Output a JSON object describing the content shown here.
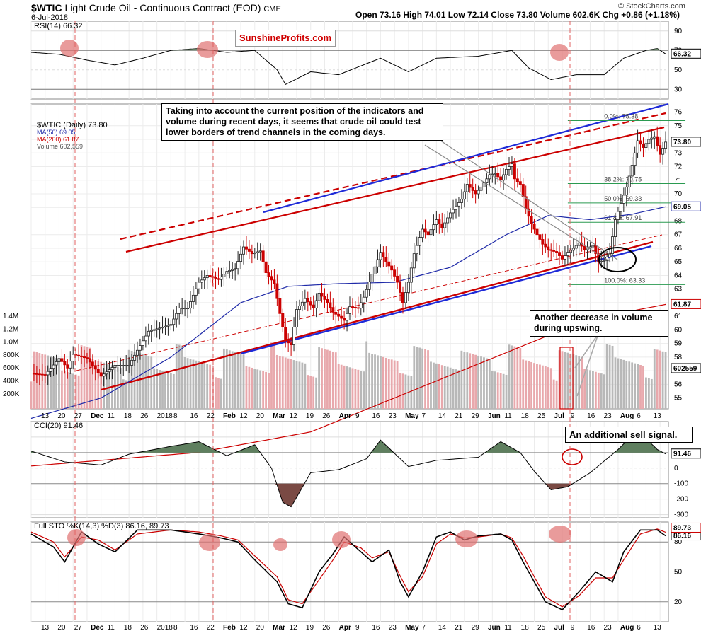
{
  "header": {
    "symbol": "$WTIC",
    "name": "Light Crude Oil - Continuous Contract (EOD)",
    "exchange": "CME",
    "date": "6-Jul-2018",
    "ohlc_text": "Open 73.16  High 74.01  Low 72.14  Close 73.80  Volume 602.6K  Chg +0.86 (+1.18%)",
    "source": "© StockCharts.com"
  },
  "brand": "SunshineProfits.com",
  "annotations": {
    "main": "Taking into account the current position of the indicators and volume during recent days, it seems that crude oil could test lower borders of trend channels in the coming days.",
    "volume": "Another decrease in volume during upswing.",
    "cci": "An additional sell signal."
  },
  "colors": {
    "up": "#222222",
    "down": "#cc0000",
    "ma50": "#1f2aa8",
    "ma200": "#cc0000",
    "indicator_fill": "#5f7f5f",
    "fill_neg": "#7a4a44",
    "highlight": "#e07070",
    "channel_red": "#cc0000",
    "channel_blue": "#1e2ad8"
  },
  "panels": {
    "rsi": {
      "label": "RSI(14) 66.32",
      "last": "66.32",
      "ticks": [
        "90",
        "70",
        "50",
        "30"
      ]
    },
    "price": {
      "legend": [
        {
          "text": "$WTIC (Daily) 73.80",
          "color": "#000000"
        },
        {
          "text": "MA(50) 69.05",
          "color": "#1f2aa8"
        },
        {
          "text": "MA(200) 61.87",
          "color": "#cc0000"
        },
        {
          "text": "Volume 602,559",
          "color": "#555555"
        }
      ],
      "ticks": [
        "76",
        "75",
        "74",
        "73",
        "72",
        "71",
        "70",
        "69",
        "68",
        "67",
        "66",
        "65",
        "64",
        "63",
        "62",
        "61",
        "60",
        "59",
        "58",
        "57",
        "56",
        "55"
      ],
      "last": "73.80",
      "ma50_last": "69.05",
      "ma200_last": "61.87",
      "volume_last": "602559",
      "volume_ticks": [
        "1.4M",
        "1.2M",
        "1.0M",
        "800K",
        "600K",
        "400K",
        "200K"
      ],
      "fib_levels": [
        {
          "label": "0.0%: 75.38",
          "value": 75.38
        },
        {
          "label": "38.2%: 70.75",
          "value": 70.75
        },
        {
          "label": "50.0%: 69.33",
          "value": 69.33
        },
        {
          "label": "61.8%: 67.91",
          "value": 67.91
        },
        {
          "label": "100.0%: 63.33",
          "value": 63.33
        }
      ]
    },
    "cci": {
      "label": "CCI(20) 91.46",
      "last": "91.46",
      "ticks": [
        "200",
        "100",
        "0",
        "-100",
        "-200",
        "-300"
      ]
    },
    "sto": {
      "label": "Full STO %K(14,3) %D(3) 86.16, 89.73",
      "k_last": "86.16",
      "d_last": "89.73",
      "ticks": [
        "80",
        "50",
        "20"
      ]
    }
  },
  "x_labels": [
    "13",
    "20",
    "27",
    "Dec",
    "11",
    "18",
    "26",
    "2018",
    "8",
    "16",
    "22",
    "Feb",
    "12",
    "20",
    "Mar",
    "12",
    "19",
    "26",
    "Apr",
    "9",
    "16",
    "23",
    "May",
    "7",
    "14",
    "21",
    "29",
    "Jun",
    "11",
    "18",
    "25",
    "Jul",
    "9",
    "16",
    "23",
    "Aug",
    "6",
    "13"
  ],
  "chart_data": {
    "type": "line",
    "title": "$WTIC Light Crude Oil - Continuous Contract (EOD)",
    "x_start": "2017-11-09",
    "x_end": "2018-07-06",
    "series": [
      {
        "name": "$WTIC (Daily)",
        "points": [
          [
            0,
            56.8
          ],
          [
            5,
            56.7
          ],
          [
            10,
            57.9
          ],
          [
            13,
            57.2
          ],
          [
            15,
            58.2
          ],
          [
            20,
            57.9
          ],
          [
            25,
            56.6
          ],
          [
            30,
            57.4
          ],
          [
            35,
            57.4
          ],
          [
            38,
            58.5
          ],
          [
            42,
            59.9
          ],
          [
            47,
            60.2
          ],
          [
            50,
            60.4
          ],
          [
            53,
            61.6
          ],
          [
            56,
            61.6
          ],
          [
            60,
            63.5
          ],
          [
            63,
            64.0
          ],
          [
            67,
            63.7
          ],
          [
            70,
            64.3
          ],
          [
            73,
            64.5
          ],
          [
            76,
            66.1
          ],
          [
            79,
            65.6
          ],
          [
            82,
            65.8
          ],
          [
            84,
            64.2
          ],
          [
            87,
            63.4
          ],
          [
            89,
            61.2
          ],
          [
            91,
            59.2
          ],
          [
            93,
            58.9
          ],
          [
            95,
            61.5
          ],
          [
            98,
            62.3
          ],
          [
            101,
            61.6
          ],
          [
            103,
            62.7
          ],
          [
            106,
            62.0
          ],
          [
            108,
            61.3
          ],
          [
            110,
            61.0
          ],
          [
            112,
            60.7
          ],
          [
            114,
            61.7
          ],
          [
            117,
            61.6
          ],
          [
            119,
            62.4
          ],
          [
            122,
            64.1
          ],
          [
            125,
            65.7
          ],
          [
            127,
            65.0
          ],
          [
            129,
            64.4
          ],
          [
            131,
            63.5
          ],
          [
            133,
            62.0
          ],
          [
            135,
            63.5
          ],
          [
            137,
            65.6
          ],
          [
            140,
            67.4
          ],
          [
            142,
            67.0
          ],
          [
            145,
            68.1
          ],
          [
            147,
            67.5
          ],
          [
            150,
            68.6
          ],
          [
            152,
            69.1
          ],
          [
            154,
            69.6
          ],
          [
            156,
            70.7
          ],
          [
            159,
            70.0
          ],
          [
            161,
            70.5
          ],
          [
            164,
            71.4
          ],
          [
            166,
            71.5
          ],
          [
            168,
            71.0
          ],
          [
            170,
            71.8
          ],
          [
            172,
            72.2
          ],
          [
            173,
            71.1
          ],
          [
            175,
            70.7
          ],
          [
            177,
            68.9
          ],
          [
            179,
            67.8
          ],
          [
            181,
            67.0
          ],
          [
            183,
            66.3
          ],
          [
            185,
            65.9
          ],
          [
            188,
            65.7
          ],
          [
            190,
            65.2
          ],
          [
            192,
            65.7
          ],
          [
            194,
            66.0
          ],
          [
            196,
            66.4
          ],
          [
            198,
            65.9
          ],
          [
            201,
            66.2
          ],
          [
            203,
            65.0
          ],
          [
            205,
            65.1
          ],
          [
            207,
            65.6
          ],
          [
            209,
            68.1
          ],
          [
            211,
            69.3
          ],
          [
            213,
            70.5
          ],
          [
            215,
            72.1
          ],
          [
            217,
            73.9
          ],
          [
            219,
            73.4
          ],
          [
            221,
            74.0
          ],
          [
            223,
            74.2
          ],
          [
            225,
            72.9
          ],
          [
            227,
            73.8
          ]
        ]
      },
      {
        "name": "MA(50)",
        "points": [
          [
            0,
            53.5
          ],
          [
            25,
            55.0
          ],
          [
            50,
            58.0
          ],
          [
            75,
            62.0
          ],
          [
            92,
            63.2
          ],
          [
            110,
            63.4
          ],
          [
            130,
            63.5
          ],
          [
            150,
            64.6
          ],
          [
            170,
            67.0
          ],
          [
            185,
            68.4
          ],
          [
            200,
            68.1
          ],
          [
            215,
            68.5
          ],
          [
            227,
            69.05
          ]
        ]
      },
      {
        "name": "MA(200)",
        "points": [
          [
            0,
            50.0
          ],
          [
            60,
            51.0
          ],
          [
            100,
            52.5
          ],
          [
            130,
            55.0
          ],
          [
            160,
            57.5
          ],
          [
            190,
            60.0
          ],
          [
            210,
            61.2
          ],
          [
            227,
            61.87
          ]
        ]
      },
      {
        "name": "RSI(14)",
        "points": [
          [
            0,
            68
          ],
          [
            10,
            66
          ],
          [
            20,
            60
          ],
          [
            30,
            55
          ],
          [
            40,
            62
          ],
          [
            50,
            70
          ],
          [
            60,
            72
          ],
          [
            70,
            68
          ],
          [
            80,
            70
          ],
          [
            88,
            50
          ],
          [
            91,
            35
          ],
          [
            100,
            48
          ],
          [
            110,
            45
          ],
          [
            125,
            62
          ],
          [
            135,
            48
          ],
          [
            145,
            62
          ],
          [
            160,
            64
          ],
          [
            172,
            70
          ],
          [
            178,
            52
          ],
          [
            186,
            40
          ],
          [
            195,
            45
          ],
          [
            205,
            45
          ],
          [
            212,
            62
          ],
          [
            220,
            70
          ],
          [
            224,
            72
          ],
          [
            227,
            66.32
          ]
        ]
      },
      {
        "name": "CCI(20)",
        "points": [
          [
            0,
            110
          ],
          [
            12,
            40
          ],
          [
            25,
            20
          ],
          [
            35,
            90
          ],
          [
            50,
            140
          ],
          [
            60,
            170
          ],
          [
            70,
            80
          ],
          [
            80,
            150
          ],
          [
            86,
            0
          ],
          [
            90,
            -220
          ],
          [
            93,
            -250
          ],
          [
            100,
            -30
          ],
          [
            110,
            -10
          ],
          [
            120,
            60
          ],
          [
            125,
            180
          ],
          [
            135,
            10
          ],
          [
            145,
            50
          ],
          [
            160,
            70
          ],
          [
            168,
            170
          ],
          [
            175,
            100
          ],
          [
            180,
            -20
          ],
          [
            186,
            -140
          ],
          [
            192,
            -120
          ],
          [
            200,
            -30
          ],
          [
            210,
            120
          ],
          [
            215,
            210
          ],
          [
            220,
            190
          ],
          [
            224,
            120
          ],
          [
            227,
            91.46
          ]
        ]
      },
      {
        "name": "%K(14,3)",
        "points": [
          [
            0,
            88
          ],
          [
            8,
            75
          ],
          [
            12,
            60
          ],
          [
            18,
            90
          ],
          [
            24,
            78
          ],
          [
            30,
            70
          ],
          [
            38,
            92
          ],
          [
            50,
            92
          ],
          [
            60,
            88
          ],
          [
            68,
            84
          ],
          [
            74,
            80
          ],
          [
            80,
            62
          ],
          [
            88,
            40
          ],
          [
            92,
            18
          ],
          [
            97,
            14
          ],
          [
            103,
            50
          ],
          [
            108,
            68
          ],
          [
            112,
            85
          ],
          [
            118,
            70
          ],
          [
            122,
            60
          ],
          [
            128,
            72
          ],
          [
            132,
            40
          ],
          [
            135,
            25
          ],
          [
            140,
            50
          ],
          [
            145,
            85
          ],
          [
            150,
            90
          ],
          [
            155,
            82
          ],
          [
            160,
            86
          ],
          [
            168,
            88
          ],
          [
            172,
            82
          ],
          [
            176,
            60
          ],
          [
            180,
            40
          ],
          [
            184,
            20
          ],
          [
            190,
            12
          ],
          [
            196,
            30
          ],
          [
            202,
            50
          ],
          [
            208,
            40
          ],
          [
            212,
            70
          ],
          [
            218,
            92
          ],
          [
            224,
            92
          ],
          [
            227,
            86.16
          ]
        ]
      },
      {
        "name": "%D(3)",
        "points": [
          [
            0,
            90
          ],
          [
            8,
            80
          ],
          [
            12,
            65
          ],
          [
            18,
            85
          ],
          [
            24,
            82
          ],
          [
            30,
            72
          ],
          [
            38,
            88
          ],
          [
            50,
            92
          ],
          [
            60,
            90
          ],
          [
            68,
            86
          ],
          [
            74,
            82
          ],
          [
            80,
            66
          ],
          [
            88,
            45
          ],
          [
            92,
            22
          ],
          [
            97,
            18
          ],
          [
            103,
            42
          ],
          [
            108,
            62
          ],
          [
            112,
            80
          ],
          [
            118,
            74
          ],
          [
            122,
            64
          ],
          [
            128,
            70
          ],
          [
            132,
            46
          ],
          [
            135,
            30
          ],
          [
            140,
            45
          ],
          [
            145,
            78
          ],
          [
            150,
            88
          ],
          [
            155,
            84
          ],
          [
            160,
            85
          ],
          [
            168,
            88
          ],
          [
            172,
            84
          ],
          [
            176,
            66
          ],
          [
            180,
            45
          ],
          [
            184,
            25
          ],
          [
            190,
            15
          ],
          [
            196,
            26
          ],
          [
            202,
            44
          ],
          [
            208,
            44
          ],
          [
            212,
            62
          ],
          [
            218,
            88
          ],
          [
            224,
            93
          ],
          [
            227,
            89.73
          ]
        ]
      }
    ],
    "ylim_price": [
      55,
      76
    ],
    "ylim_rsi": [
      20,
      100
    ],
    "ylim_cci": [
      -300,
      300
    ],
    "ylim_sto": [
      0,
      100
    ],
    "grid": true
  }
}
